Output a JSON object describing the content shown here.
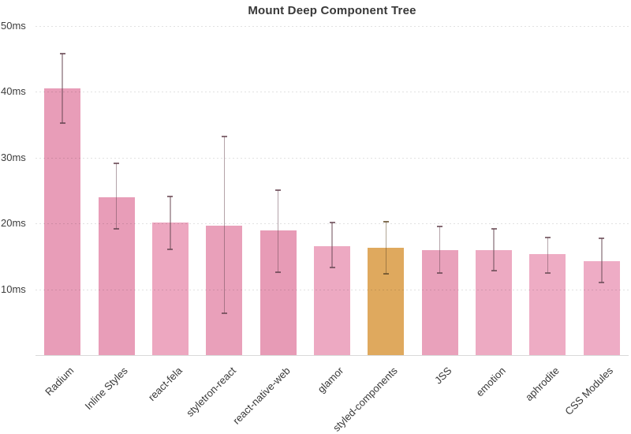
{
  "chart_data": {
    "type": "bar",
    "title": "Mount Deep Component Tree",
    "unit": "ms",
    "ylim": [
      0,
      50
    ],
    "yticks": [
      10,
      20,
      30,
      40,
      50
    ],
    "ytick_suffix": "ms",
    "grid": "horizontal-dashed",
    "legend": "none",
    "error_bars": true,
    "categories": [
      "Radium",
      "Inline Styles",
      "react-fela",
      "styletron-react",
      "react-native-web",
      "glamor",
      "styled-components",
      "JSS",
      "emotion",
      "aphrodite",
      "CSS Modules"
    ],
    "values": [
      40.5,
      24.0,
      20.1,
      19.7,
      18.9,
      16.5,
      16.3,
      15.9,
      15.9,
      15.3,
      14.3
    ],
    "error_high": [
      45.8,
      29.1,
      24.1,
      33.2,
      25.1,
      20.1,
      20.3,
      19.5,
      19.2,
      17.9,
      17.7
    ],
    "error_low": [
      35.2,
      19.2,
      16.1,
      6.3,
      12.6,
      13.3,
      12.4,
      12.5,
      12.8,
      12.5,
      11.0
    ],
    "highlight_index": 6,
    "highlight_category": "styled-components",
    "bar_colors": [
      "#e89db8",
      "#e89db8",
      "#eda7c0",
      "#e9a0ba",
      "#e79bb6",
      "#eda9c2",
      "#dfa95e",
      "#e9a1bb",
      "#edaac2",
      "#eeacc4",
      "#eeacc5"
    ],
    "colors": {
      "title_text": "#383838",
      "axis_text": "#3d3d3d",
      "gridline": "#e1e1e1",
      "axis_line": "#d9d9d9",
      "background": "#ffffff",
      "highlight_bar": "#dfa95e",
      "default_bar": "#e89db8"
    }
  }
}
